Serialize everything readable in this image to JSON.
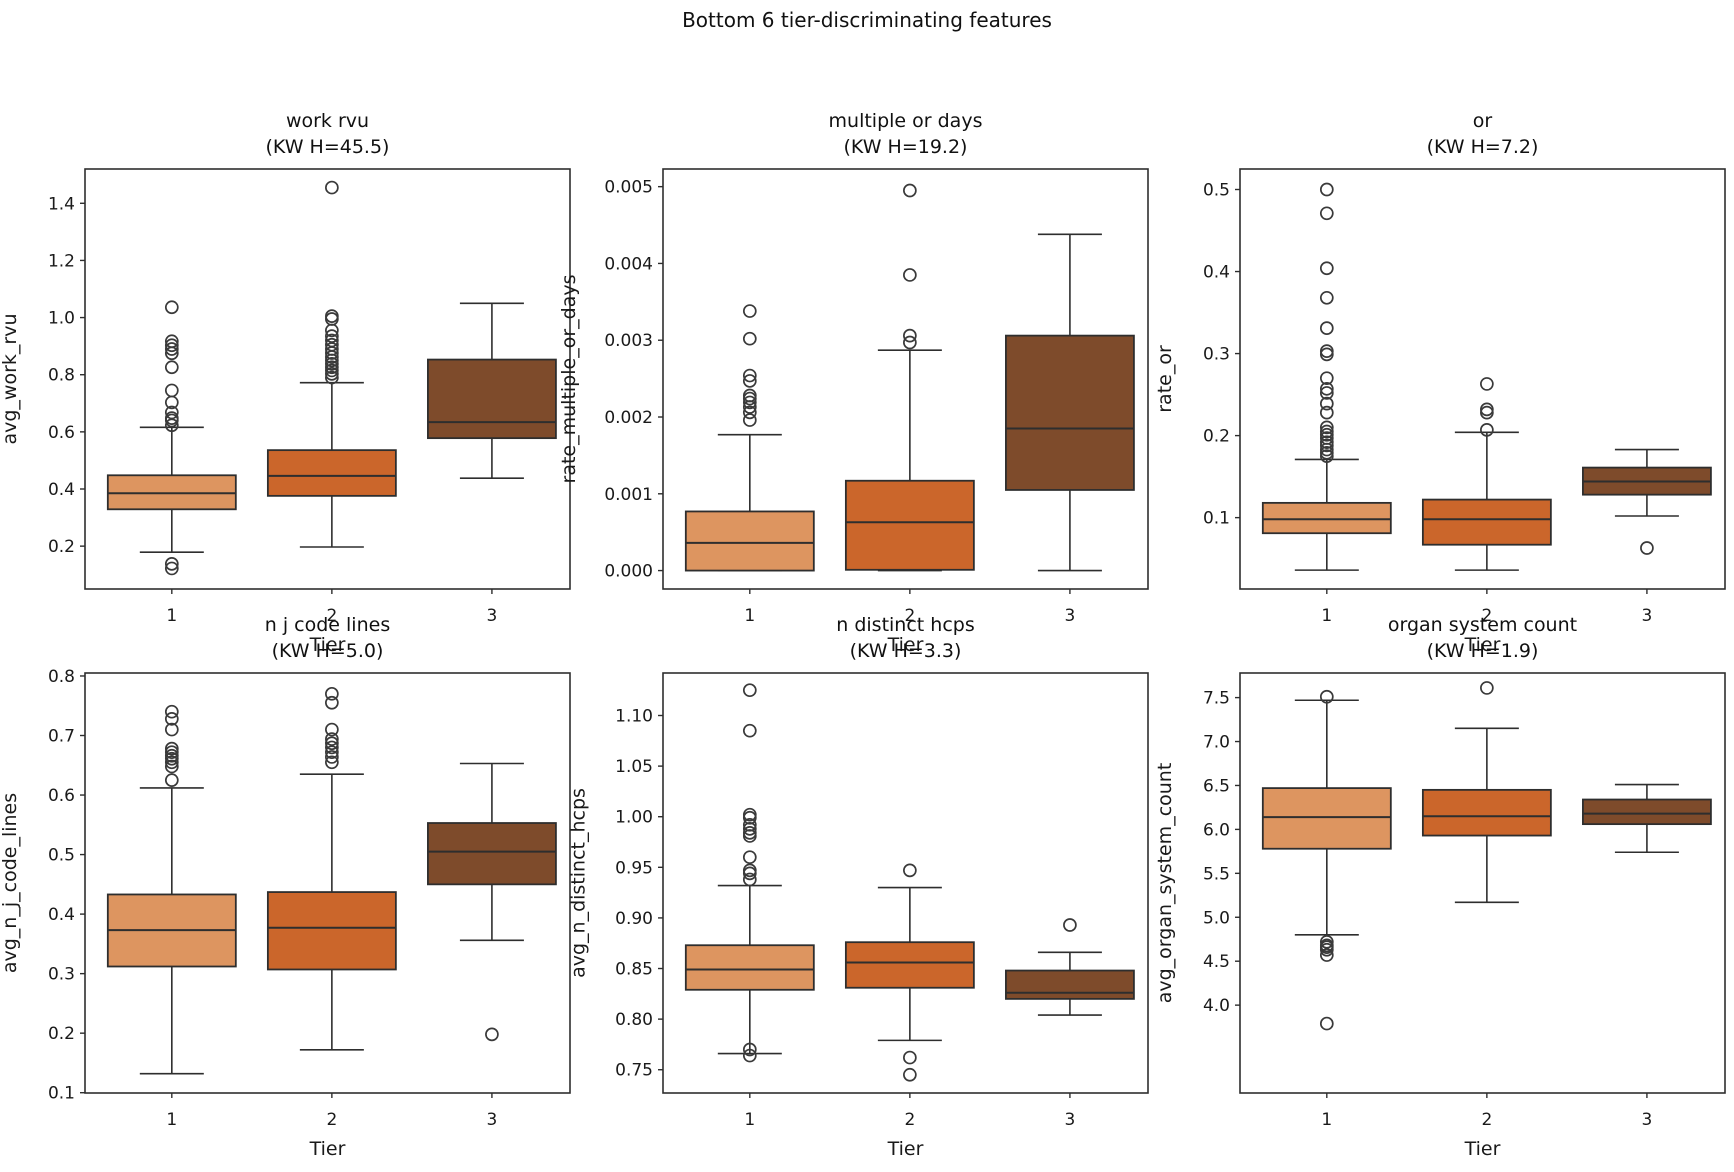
{
  "figure": {
    "suptitle": "Bottom 6 tier-discriminating features",
    "xlabel": "Tier",
    "xtick_labels": [
      "1",
      "2",
      "3"
    ],
    "tier_colors": [
      "#DD9560",
      "#CB662B",
      "#7E4B2B"
    ],
    "box_edge_color": "#2E2E2E",
    "flier_edge_color": "#3A3A3A",
    "text_color": "#1A1A1A",
    "background": "#FFFFFF"
  },
  "chart_data": [
    {
      "type": "box",
      "title": "work rvu",
      "subtitle": "(KW H=45.5)",
      "kw_h": 45.5,
      "ylabel": "avg_work_rvu",
      "ylim": [
        0.05,
        1.52
      ],
      "yticks": [
        0.2,
        0.4,
        0.6,
        0.8,
        1.0,
        1.2,
        1.4
      ],
      "ytick_labels": [
        "0.2",
        "0.4",
        "0.6",
        "0.8",
        "1.0",
        "1.2",
        "1.4"
      ],
      "categories": [
        "1",
        "2",
        "3"
      ],
      "groups": [
        {
          "tier": "1",
          "whisker_low": 0.179,
          "q1": 0.329,
          "median": 0.385,
          "q3": 0.448,
          "whisker_high": 0.616,
          "outliers": [
            0.122,
            0.138,
            0.623,
            0.64,
            0.648,
            0.668,
            0.703,
            0.745,
            0.826,
            0.875,
            0.89,
            0.903,
            0.917,
            1.036
          ]
        },
        {
          "tier": "2",
          "whisker_low": 0.197,
          "q1": 0.376,
          "median": 0.446,
          "q3": 0.536,
          "whisker_high": 0.772,
          "outliers": [
            0.79,
            0.803,
            0.815,
            0.826,
            0.838,
            0.85,
            0.862,
            0.876,
            0.89,
            0.905,
            0.92,
            0.935,
            0.955,
            0.995,
            1.005,
            1.455
          ]
        },
        {
          "tier": "3",
          "whisker_low": 0.438,
          "q1": 0.578,
          "median": 0.634,
          "q3": 0.853,
          "whisker_high": 1.05,
          "outliers": []
        }
      ]
    },
    {
      "type": "box",
      "title": "multiple or days",
      "subtitle": "(KW H=19.2)",
      "kw_h": 19.2,
      "ylabel": "rate_multiple_or_days",
      "ylim": [
        -0.00024,
        0.00523
      ],
      "yticks": [
        0.0,
        0.001,
        0.002,
        0.003,
        0.004,
        0.005
      ],
      "ytick_labels": [
        "0.000",
        "0.001",
        "0.002",
        "0.003",
        "0.004",
        "0.005"
      ],
      "categories": [
        "1",
        "2",
        "3"
      ],
      "groups": [
        {
          "tier": "1",
          "whisker_low": 0.0,
          "q1": 0.0,
          "median": 0.00036,
          "q3": 0.00077,
          "whisker_high": 0.00177,
          "outliers": [
            0.00196,
            0.00206,
            0.00213,
            0.00219,
            0.00224,
            0.00228,
            0.00247,
            0.00254,
            0.00302,
            0.00338
          ]
        },
        {
          "tier": "2",
          "whisker_low": 0.0,
          "q1": 1e-05,
          "median": 0.00063,
          "q3": 0.00117,
          "whisker_high": 0.00287,
          "outliers": [
            0.00297,
            0.00306,
            0.00385,
            0.00495
          ]
        },
        {
          "tier": "3",
          "whisker_low": 0.0,
          "q1": 0.00105,
          "median": 0.00185,
          "q3": 0.00306,
          "whisker_high": 0.00438,
          "outliers": []
        }
      ]
    },
    {
      "type": "box",
      "title": "or",
      "subtitle": "(KW H=7.2)",
      "kw_h": 7.2,
      "ylabel": "rate_or",
      "ylim": [
        0.013,
        0.525
      ],
      "yticks": [
        0.1,
        0.2,
        0.3,
        0.4,
        0.5
      ],
      "ytick_labels": [
        "0.1",
        "0.2",
        "0.3",
        "0.4",
        "0.5"
      ],
      "categories": [
        "1",
        "2",
        "3"
      ],
      "groups": [
        {
          "tier": "1",
          "whisker_low": 0.036,
          "q1": 0.081,
          "median": 0.098,
          "q3": 0.118,
          "whisker_high": 0.171,
          "outliers": [
            0.175,
            0.179,
            0.183,
            0.188,
            0.192,
            0.197,
            0.201,
            0.205,
            0.21,
            0.228,
            0.239,
            0.252,
            0.257,
            0.27,
            0.299,
            0.303,
            0.331,
            0.368,
            0.404,
            0.471,
            0.5
          ]
        },
        {
          "tier": "2",
          "whisker_low": 0.036,
          "q1": 0.067,
          "median": 0.098,
          "q3": 0.122,
          "whisker_high": 0.204,
          "outliers": [
            0.207,
            0.228,
            0.232,
            0.263
          ]
        },
        {
          "tier": "3",
          "whisker_low": 0.102,
          "q1": 0.128,
          "median": 0.144,
          "q3": 0.161,
          "whisker_high": 0.183,
          "outliers": [
            0.063
          ]
        }
      ]
    },
    {
      "type": "box",
      "title": "n j code lines",
      "subtitle": "(KW H=5.0)",
      "kw_h": 5.0,
      "ylabel": "avg_n_j_code_lines",
      "ylim": [
        0.0995,
        0.805
      ],
      "yticks": [
        0.1,
        0.2,
        0.3,
        0.4,
        0.5,
        0.6,
        0.7,
        0.8
      ],
      "ytick_labels": [
        "0.1",
        "0.2",
        "0.3",
        "0.4",
        "0.5",
        "0.6",
        "0.7",
        "0.8"
      ],
      "categories": [
        "1",
        "2",
        "3"
      ],
      "groups": [
        {
          "tier": "1",
          "whisker_low": 0.132,
          "q1": 0.312,
          "median": 0.373,
          "q3": 0.433,
          "whisker_high": 0.612,
          "outliers": [
            0.625,
            0.648,
            0.655,
            0.661,
            0.666,
            0.672,
            0.678,
            0.71,
            0.728,
            0.74
          ]
        },
        {
          "tier": "2",
          "whisker_low": 0.172,
          "q1": 0.307,
          "median": 0.377,
          "q3": 0.437,
          "whisker_high": 0.635,
          "outliers": [
            0.655,
            0.664,
            0.672,
            0.68,
            0.687,
            0.694,
            0.71,
            0.755,
            0.77
          ]
        },
        {
          "tier": "3",
          "whisker_low": 0.356,
          "q1": 0.45,
          "median": 0.505,
          "q3": 0.553,
          "whisker_high": 0.653,
          "outliers": [
            0.198
          ]
        }
      ]
    },
    {
      "type": "box",
      "title": "n distinct hcps",
      "subtitle": "(KW H=3.3)",
      "kw_h": 3.3,
      "ylabel": "avg_n_distinct_hcps",
      "ylim": [
        0.727,
        1.142
      ],
      "yticks": [
        0.75,
        0.8,
        0.85,
        0.9,
        0.95,
        1.0,
        1.05,
        1.1
      ],
      "ytick_labels": [
        "0.75",
        "0.80",
        "0.85",
        "0.90",
        "0.95",
        "1.00",
        "1.05",
        "1.10"
      ],
      "categories": [
        "1",
        "2",
        "3"
      ],
      "groups": [
        {
          "tier": "1",
          "whisker_low": 0.766,
          "q1": 0.829,
          "median": 0.849,
          "q3": 0.873,
          "whisker_high": 0.932,
          "outliers": [
            0.764,
            0.77,
            0.938,
            0.944,
            0.947,
            0.96,
            0.981,
            0.984,
            0.988,
            0.992,
            0.999,
            1.002,
            1.085,
            1.125
          ]
        },
        {
          "tier": "2",
          "whisker_low": 0.779,
          "q1": 0.831,
          "median": 0.856,
          "q3": 0.876,
          "whisker_high": 0.93,
          "outliers": [
            0.745,
            0.762,
            0.947
          ]
        },
        {
          "tier": "3",
          "whisker_low": 0.804,
          "q1": 0.82,
          "median": 0.826,
          "q3": 0.848,
          "whisker_high": 0.866,
          "outliers": [
            0.893
          ]
        }
      ]
    },
    {
      "type": "box",
      "title": "organ system count",
      "subtitle": "(KW H=1.9)",
      "kw_h": 1.9,
      "ylabel": "avg_organ_system_count",
      "ylim": [
        3.0,
        7.78
      ],
      "yticks": [
        4.0,
        4.5,
        5.0,
        5.5,
        6.0,
        6.5,
        7.0,
        7.5
      ],
      "ytick_labels": [
        "4.0",
        "4.5",
        "5.0",
        "5.5",
        "6.0",
        "6.5",
        "7.0",
        "7.5"
      ],
      "categories": [
        "1",
        "2",
        "3"
      ],
      "groups": [
        {
          "tier": "1",
          "whisker_low": 4.8,
          "q1": 5.78,
          "median": 6.14,
          "q3": 6.47,
          "whisker_high": 7.47,
          "outliers": [
            3.79,
            4.57,
            4.63,
            4.66,
            4.68,
            4.72,
            7.51
          ]
        },
        {
          "tier": "2",
          "whisker_low": 5.17,
          "q1": 5.93,
          "median": 6.15,
          "q3": 6.45,
          "whisker_high": 7.15,
          "outliers": [
            7.61
          ]
        },
        {
          "tier": "3",
          "whisker_low": 5.74,
          "q1": 6.06,
          "median": 6.18,
          "q3": 6.34,
          "whisker_high": 6.51,
          "outliers": []
        }
      ]
    }
  ]
}
